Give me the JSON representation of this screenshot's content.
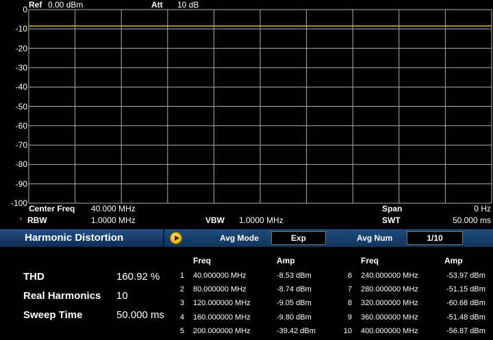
{
  "header": {
    "ref_label": "Ref",
    "ref_value": "0.00 dBm",
    "att_label": "Att",
    "att_value": "10 dB"
  },
  "chart_data": {
    "type": "line",
    "y_tick_labels": [
      "0",
      "-10",
      "-20",
      "-30",
      "-40",
      "-50",
      "-60",
      "-70",
      "-80",
      "-90",
      "-100"
    ],
    "ylim": [
      -100,
      0
    ],
    "x_divisions": 10,
    "grid": true,
    "series": [
      {
        "points": [
          [
            0,
            -8.5
          ],
          [
            1,
            -8.5
          ]
        ],
        "color": "#e0b43c"
      }
    ]
  },
  "info": {
    "center_freq_label": "Center Freq",
    "center_freq_value": "40.000 MHz",
    "span_label": "Span",
    "span_value": "0 Hz",
    "rbw_marker": "*",
    "rbw_label": "RBW",
    "rbw_value": "1.0000 MHz",
    "vbw_label": "VBW",
    "vbw_value": "1.0000 MHz",
    "swt_label": "SWT",
    "swt_value": "50.000 ms"
  },
  "menu": {
    "title": "Harmonic Distortion",
    "avg_mode_label": "Avg Mode",
    "avg_mode_value": "Exp",
    "avg_num_label": "Avg Num",
    "avg_num_value": "1/10"
  },
  "results": {
    "thd_label": "THD",
    "thd_value": "160.92 %",
    "real_harmonics_label": "Real Harmonics",
    "real_harmonics_value": "10",
    "sweep_time_label": "Sweep Time",
    "sweep_time_value": "50.000 ms"
  },
  "table": {
    "headers": {
      "freq": "Freq",
      "amp": "Amp"
    },
    "left": [
      {
        "n": "1",
        "freq": "40.000000 MHz",
        "amp": "-8.53 dBm"
      },
      {
        "n": "2",
        "freq": "80.000000 MHz",
        "amp": "-8.74 dBm"
      },
      {
        "n": "3",
        "freq": "120.000000 MHz",
        "amp": "-9.05 dBm"
      },
      {
        "n": "4",
        "freq": "160.000000 MHz",
        "amp": "-9.80 dBm"
      },
      {
        "n": "5",
        "freq": "200.000000 MHz",
        "amp": "-39.42 dBm"
      }
    ],
    "right": [
      {
        "n": "6",
        "freq": "240.000000 MHz",
        "amp": "-53.97 dBm"
      },
      {
        "n": "7",
        "freq": "280.000000 MHz",
        "amp": "-51.15 dBm"
      },
      {
        "n": "8",
        "freq": "320.000000 MHz",
        "amp": "-60.68 dBm"
      },
      {
        "n": "9",
        "freq": "360.000000 MHz",
        "amp": "-51.48 dBm"
      },
      {
        "n": "10",
        "freq": "400.000000 MHz",
        "amp": "-56.87 dBm"
      }
    ]
  }
}
